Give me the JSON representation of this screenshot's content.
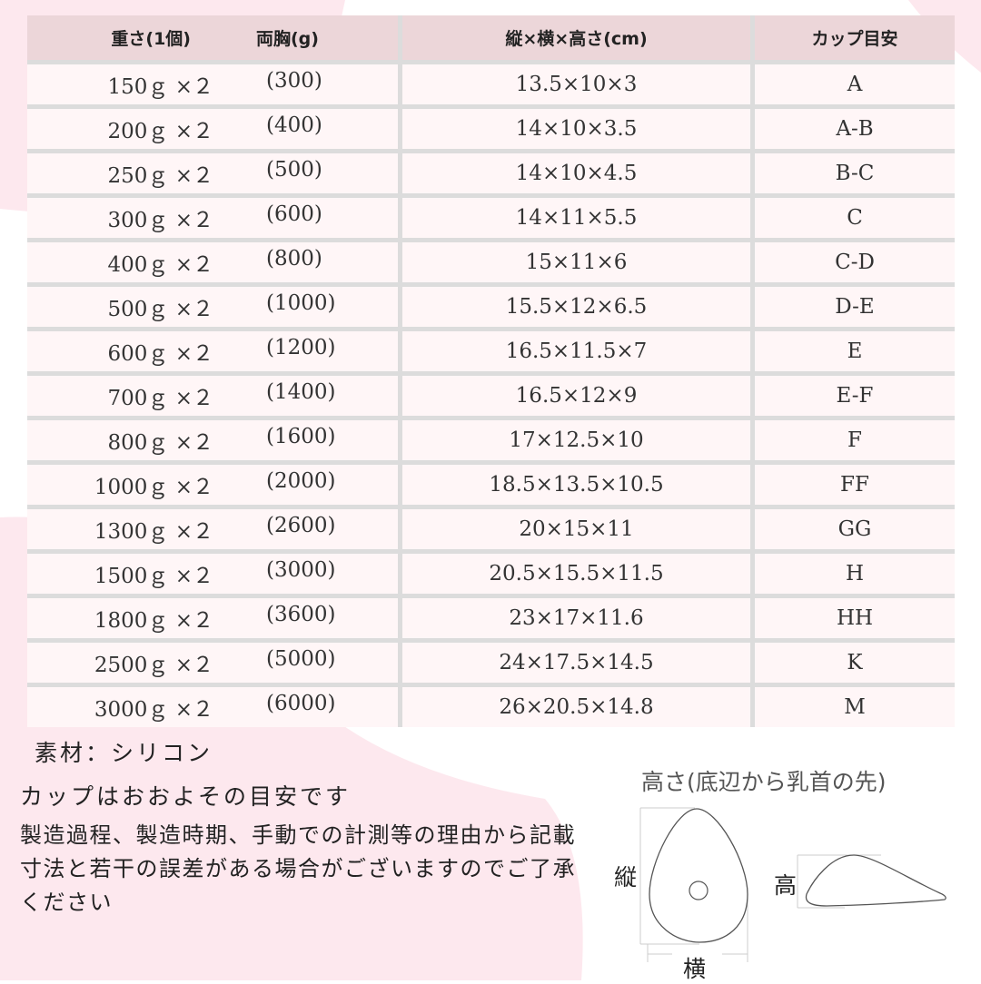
{
  "table": {
    "headers": {
      "weight": "重さ(1個)",
      "both": "両胸(g)",
      "size": "縦×横×高さ(cm)",
      "cup": "カップ目安"
    },
    "rows": [
      {
        "weight": "150ｇ ×２",
        "both": "(300)",
        "size": "13.5×10×3",
        "cup": "A"
      },
      {
        "weight": "200ｇ ×２",
        "both": "(400)",
        "size": "14×10×3.5",
        "cup": "A-B"
      },
      {
        "weight": "250ｇ ×２",
        "both": "(500)",
        "size": "14×10×4.5",
        "cup": "B-C"
      },
      {
        "weight": "300ｇ ×２",
        "both": "(600)",
        "size": "14×11×5.5",
        "cup": "C"
      },
      {
        "weight": "400ｇ ×２",
        "both": "(800)",
        "size": "15×11×6",
        "cup": "C-D"
      },
      {
        "weight": "500ｇ ×２",
        "both": "(1000)",
        "size": "15.5×12×6.5",
        "cup": "D-E"
      },
      {
        "weight": "600ｇ ×２",
        "both": "(1200)",
        "size": "16.5×11.5×7",
        "cup": "E"
      },
      {
        "weight": "700ｇ ×２",
        "both": "(1400)",
        "size": "16.5×12×9",
        "cup": "E-F"
      },
      {
        "weight": "800ｇ ×２",
        "both": "(1600)",
        "size": "17×12.5×10",
        "cup": "F"
      },
      {
        "weight": "1000ｇ ×２",
        "both": "(2000)",
        "size": "18.5×13.5×10.5",
        "cup": "FF"
      },
      {
        "weight": "1300ｇ ×２",
        "both": "(2600)",
        "size": "20×15×11",
        "cup": "GG"
      },
      {
        "weight": "1500ｇ ×２",
        "both": "(3000)",
        "size": "20.5×15.5×11.5",
        "cup": "H"
      },
      {
        "weight": "1800ｇ ×２",
        "both": "(3600)",
        "size": "23×17×11.6",
        "cup": "HH"
      },
      {
        "weight": "2500ｇ ×２",
        "both": "(5000)",
        "size": "24×17.5×14.5",
        "cup": "K"
      },
      {
        "weight": "3000ｇ ×２",
        "both": "(6000)",
        "size": "26×20.5×14.8",
        "cup": "M"
      }
    ]
  },
  "notes": {
    "material": "素材：シリコン",
    "cup_note": "カップはおおよその目安です",
    "disclaimer": "製造過程、製造時期、手動での計測等の理由から記載寸法と若干の誤差がある場合がございますのでご了承ください"
  },
  "diagram": {
    "title": "高さ(底辺から乳首の先)",
    "length_label": "縦",
    "width_label": "横",
    "height_label": "高"
  },
  "colors": {
    "header_bg": "#ecd6d9",
    "row_bg": "#fff6f7",
    "accent_pink": "#fbe3e9"
  }
}
